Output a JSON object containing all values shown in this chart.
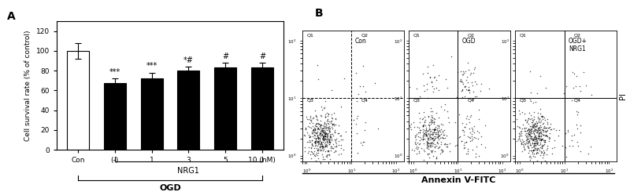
{
  "panel_A": {
    "title": "A",
    "categories": [
      "Con",
      "(-)",
      "1",
      "3",
      "5",
      "10 (nM)"
    ],
    "values": [
      100,
      67,
      72,
      80,
      83,
      83
    ],
    "errors": [
      8,
      5,
      6,
      4,
      5,
      5
    ],
    "bar_colors": [
      "white",
      "black",
      "black",
      "black",
      "black",
      "black"
    ],
    "bar_edge_color": "black",
    "ylabel": "Cell survival rate (% of control)",
    "ylim": [
      0,
      130
    ],
    "yticks": [
      0,
      20,
      40,
      60,
      80,
      100,
      120
    ],
    "annotations": [
      "",
      "***",
      "***",
      "*#",
      "#",
      "#"
    ],
    "nrg1_label": "NRG1",
    "ogd_label": "OGD"
  },
  "panel_B": {
    "title": "B",
    "scatter_labels": [
      "Con",
      "OGD",
      "OGD+\nNRG1"
    ],
    "xlabel": "Annexin V-FITC",
    "ylabel": "PI",
    "quadrant_labels": [
      "Q1",
      "Q2",
      "Q3",
      "Q4"
    ]
  }
}
